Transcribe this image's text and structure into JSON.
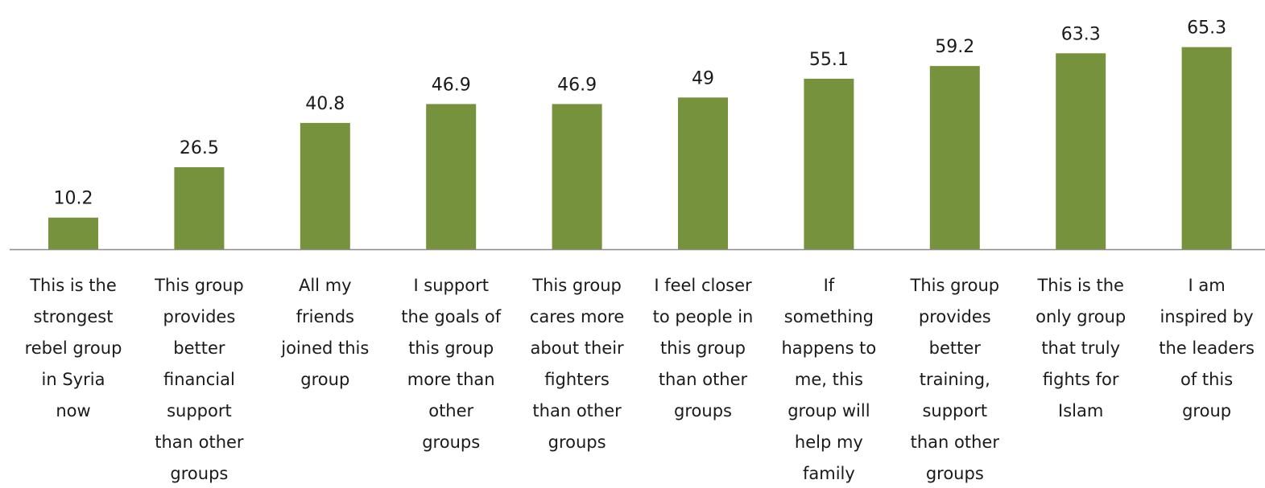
{
  "chart_data": {
    "type": "bar",
    "title": "",
    "xlabel": "",
    "ylabel": "",
    "ylim": [
      0,
      70
    ],
    "grid": false,
    "legend": "none",
    "bar_color": "#76923c",
    "axis_color": "#8c8c8c",
    "categories": [
      [
        "This is the",
        "strongest",
        "rebel group",
        "in Syria",
        "now"
      ],
      [
        "This group",
        "provides",
        "better",
        "financial",
        "support",
        "than other",
        "groups"
      ],
      [
        "All my",
        "friends",
        "joined this",
        "group"
      ],
      [
        "I support",
        "the goals of",
        "this group",
        "more than",
        "other",
        "groups"
      ],
      [
        "This group",
        "cares more",
        "about their",
        "fighters",
        "than other",
        "groups"
      ],
      [
        "I feel closer",
        "to people in",
        "this group",
        "than other",
        "groups"
      ],
      [
        "If",
        "something",
        "happens to",
        "me, this",
        "group will",
        "help my",
        "family"
      ],
      [
        "This group",
        "provides",
        "better",
        "training,",
        "support",
        "than other",
        "groups"
      ],
      [
        "This is the",
        "only group",
        "that truly",
        "fights for",
        "Islam"
      ],
      [
        "I am",
        "inspired by",
        "the leaders",
        "of this",
        "group"
      ]
    ],
    "values": [
      10.2,
      26.5,
      40.8,
      46.9,
      46.9,
      49,
      55.1,
      59.2,
      63.3,
      65.3
    ],
    "value_labels": [
      "10.2",
      "26.5",
      "40.8",
      "46.9",
      "46.9",
      "49",
      "55.1",
      "59.2",
      "63.3",
      "65.3"
    ]
  }
}
